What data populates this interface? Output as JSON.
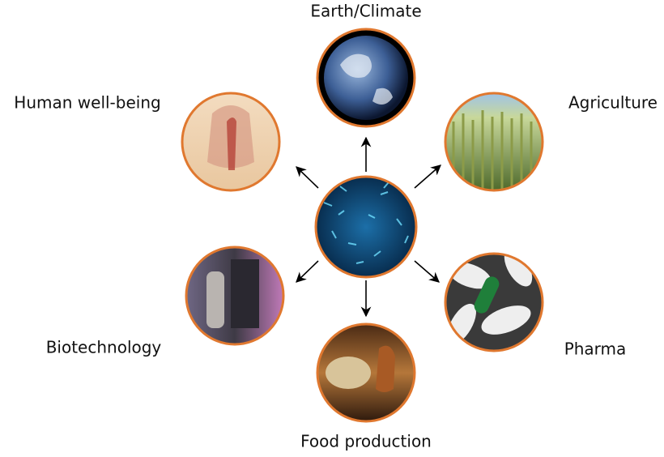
{
  "nodes": [
    {
      "label": "Earth/Climate"
    },
    {
      "label": "Human well-being"
    },
    {
      "label": "Agriculture"
    },
    {
      "label": "Biotechnology"
    },
    {
      "label": "Pharma"
    },
    {
      "label": "Food production"
    }
  ]
}
